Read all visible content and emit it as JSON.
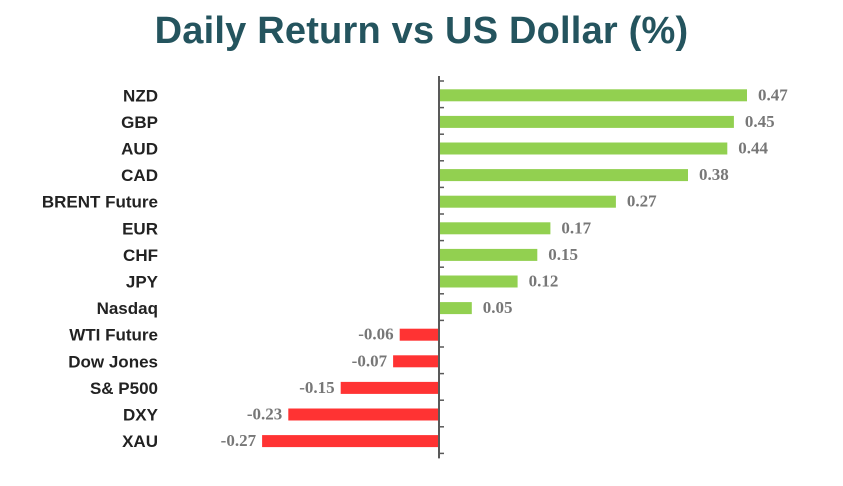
{
  "chart_data": {
    "type": "bar",
    "orientation": "horizontal",
    "title": "Daily Return vs US Dollar (%)",
    "categories": [
      "NZD",
      "GBP",
      "AUD",
      "CAD",
      "BRENT Future",
      "EUR",
      "CHF",
      "JPY",
      "Nasdaq",
      "WTI Future",
      "Dow Jones",
      "S& P500",
      "DXY",
      "XAU"
    ],
    "values": [
      0.47,
      0.45,
      0.44,
      0.38,
      0.27,
      0.17,
      0.15,
      0.12,
      0.05,
      -0.06,
      -0.07,
      -0.15,
      -0.23,
      -0.27
    ],
    "value_labels": [
      "0.47",
      "0.45",
      "0.44",
      "0.38",
      "0.27",
      "0.17",
      "0.15",
      "0.12",
      "0.05",
      "-0.06",
      "-0.07",
      "-0.15",
      "-0.23",
      "-0.27"
    ],
    "xlabel": "",
    "ylabel": "",
    "colors": {
      "positive": "#92d050",
      "negative": "#ff3333",
      "axis": "#595959",
      "title": "#24545e"
    },
    "grid": false,
    "legend": "none"
  }
}
